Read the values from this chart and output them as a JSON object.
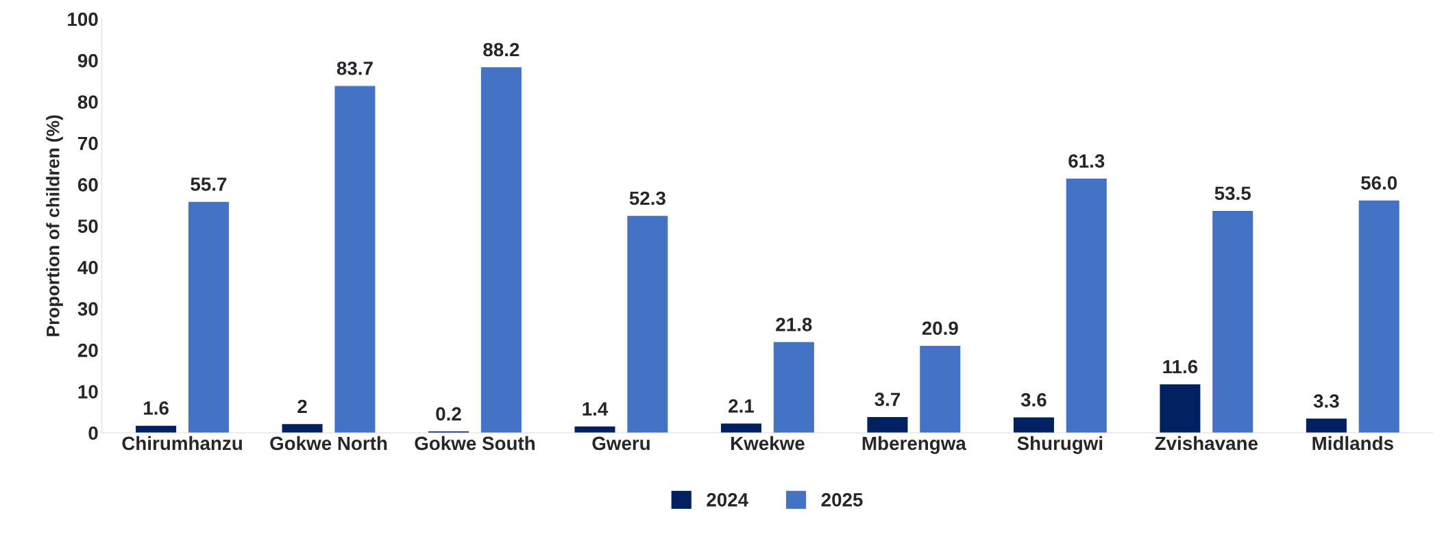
{
  "chart_data": {
    "type": "bar",
    "ylabel": "Proportion of children (%)",
    "categories": [
      "Chirumhanzu",
      "Gokwe North",
      "Gokwe South",
      "Gweru",
      "Kwekwe",
      "Mberengwa",
      "Shurugwi",
      "Zvishavane",
      "Midlands"
    ],
    "series": [
      {
        "name": "2024",
        "color": "#002060",
        "values": [
          1.6,
          2,
          0.2,
          1.4,
          2.1,
          3.7,
          3.6,
          11.6,
          3.3
        ],
        "value_labels": [
          "1.6",
          "2",
          "0.2",
          "1.4",
          "2.1",
          "3.7",
          "3.6",
          "11.6",
          "3.3"
        ]
      },
      {
        "name": "2025",
        "color": "#4472c4",
        "values": [
          55.7,
          83.7,
          88.2,
          52.3,
          21.8,
          20.9,
          61.3,
          53.5,
          56.0
        ],
        "value_labels": [
          "55.7",
          "83.7",
          "88.2",
          "52.3",
          "21.8",
          "20.9",
          "61.3",
          "53.5",
          "56.0"
        ]
      }
    ],
    "ylim": [
      0,
      100
    ],
    "yticks": [
      0,
      10,
      20,
      30,
      40,
      50,
      60,
      70,
      80,
      90,
      100
    ],
    "grid": false,
    "legend": "bottom"
  }
}
